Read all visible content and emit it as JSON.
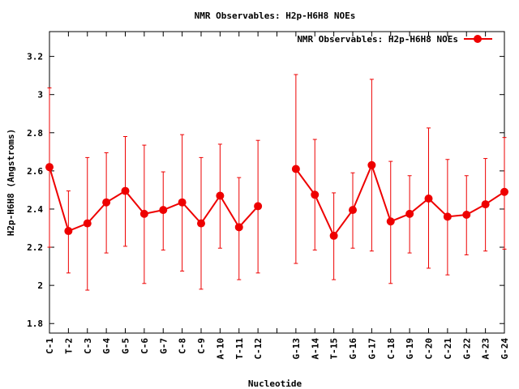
{
  "chart_data": {
    "type": "line",
    "title": "NMR Observables: H2p-H6H8 NOEs",
    "xlabel": "Nucleotide",
    "ylabel": "H2p-H6H8 (Angstroms)",
    "ylim": [
      1.75,
      3.33
    ],
    "yticks": [
      "1.8",
      "2",
      "2.2",
      "2.4",
      "2.6",
      "2.8",
      "3",
      "3.2"
    ],
    "grid": false,
    "legend_position": "top-right",
    "line_color": "#ee0000",
    "categories": [
      "C-1",
      "T-2",
      "C-3",
      "G-4",
      "G-5",
      "C-6",
      "G-7",
      "C-8",
      "C-9",
      "A-10",
      "T-11",
      "C-12",
      "",
      "G-13",
      "A-14",
      "T-15",
      "G-16",
      "G-17",
      "C-18",
      "G-19",
      "C-20",
      "C-21",
      "G-22",
      "A-23",
      "G-24"
    ],
    "series": [
      {
        "name": "NMR Observables: H2p-H6H8 NOEs",
        "values": [
          2.62,
          2.285,
          2.325,
          2.435,
          2.495,
          2.375,
          2.395,
          2.435,
          2.325,
          2.47,
          2.305,
          2.415,
          null,
          2.61,
          2.475,
          2.26,
          2.395,
          2.63,
          2.335,
          2.375,
          2.455,
          2.36,
          2.37,
          2.425,
          2.49
        ],
        "err_low": [
          2.2,
          2.065,
          1.975,
          2.17,
          2.205,
          2.01,
          2.185,
          2.075,
          1.98,
          2.195,
          2.03,
          2.065,
          null,
          2.115,
          2.185,
          2.03,
          2.195,
          2.18,
          2.01,
          2.17,
          2.09,
          2.055,
          2.16,
          2.18,
          2.19
        ],
        "err_high": [
          3.035,
          2.495,
          2.67,
          2.695,
          2.78,
          2.735,
          2.595,
          2.79,
          2.67,
          2.74,
          2.565,
          2.76,
          null,
          3.105,
          2.765,
          2.485,
          2.59,
          3.08,
          2.65,
          2.575,
          2.825,
          2.66,
          2.575,
          2.665,
          2.775
        ]
      }
    ]
  }
}
